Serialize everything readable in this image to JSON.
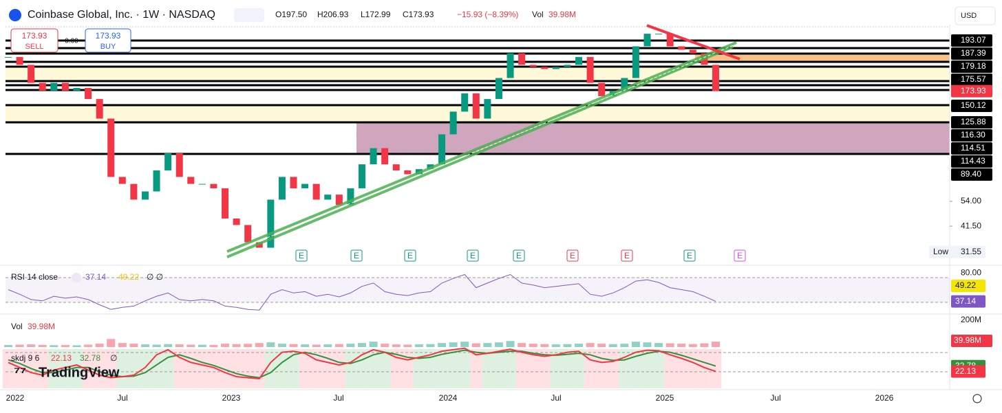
{
  "header": {
    "symbol": "Coinbase Global, Inc. · 1W · NASDAQ",
    "ohlc": [
      "O197.50",
      "H206.93",
      "L172.99",
      "C173.93"
    ],
    "change": "−15.93 (−8.39%)",
    "vol_label": "Vol",
    "vol_value": "39.98M",
    "currency": "USD"
  },
  "trade": {
    "sell_price": "173.93",
    "sell": "SELL",
    "buy_price": "173.93",
    "buy": "BUY",
    "spread": "0.00"
  },
  "chart_data": {
    "type": "candlestick",
    "up_color": "#089981",
    "down_color": "#f23645",
    "log": true,
    "ylim": [
      27.6,
      347
    ],
    "yticks": [
      {
        "value": 54,
        "label": "54.00"
      },
      {
        "value": 41.5,
        "label": "41.50"
      }
    ],
    "closes": [
      250,
      230,
      190,
      175,
      190,
      175,
      180,
      160,
      130,
      70,
      65,
      55,
      60,
      75,
      90,
      70,
      65,
      65,
      62,
      45,
      42,
      35,
      33,
      55,
      70,
      62,
      65,
      55,
      58,
      52,
      62,
      80,
      95,
      80,
      75,
      72,
      76,
      80,
      110,
      140,
      170,
      130,
      160,
      200,
      260,
      230,
      225,
      220,
      225,
      230,
      250,
      190,
      165,
      175,
      200,
      280,
      320,
      320,
      280,
      270,
      260,
      230,
      173.93
    ],
    "last_label": "173.93",
    "low_label": "Low",
    "low": 31.55,
    "levels": [
      "193.07",
      "187.39",
      "179.18",
      "175.57",
      "150.12",
      "125.88",
      "116.30",
      "114.51",
      "114.43",
      "89.40"
    ],
    "earnings": [
      "E",
      "E",
      "E",
      "E",
      "E",
      "E",
      "E",
      "E",
      "E"
    ],
    "x_labels": [
      "2022",
      "Jul",
      "2023",
      "Jul",
      "2024",
      "Jul",
      "2025",
      "Jul",
      "2026"
    ]
  },
  "rsi": {
    "title": "RSI 14 close",
    "value_label": "37.14",
    "ma_label": "49.22",
    "flags": "∅ ∅",
    "color": "#7e57c2",
    "ylim": [
      20,
      90
    ],
    "yticks": [
      {
        "value": 80,
        "label": "80.00"
      }
    ],
    "values": [
      55,
      48,
      40,
      38,
      45,
      42,
      44,
      40,
      32,
      25,
      28,
      30,
      38,
      45,
      50,
      40,
      38,
      40,
      38,
      30,
      28,
      25,
      24,
      48,
      55,
      50,
      52,
      45,
      48,
      44,
      50,
      60,
      65,
      52,
      48,
      46,
      50,
      52,
      65,
      72,
      78,
      58,
      65,
      72,
      78,
      65,
      62,
      58,
      60,
      62,
      64,
      48,
      45,
      50,
      58,
      68,
      70,
      66,
      58,
      55,
      52,
      45,
      37.14
    ]
  },
  "volume": {
    "title": "Vol",
    "value_label": "39.98M",
    "ylim": [
      0,
      200
    ],
    "top_label": "200M",
    "values": [
      15,
      18,
      20,
      16,
      14,
      15,
      13,
      18,
      25,
      60,
      30,
      25,
      20,
      18,
      22,
      20,
      18,
      17,
      16,
      25,
      22,
      24,
      30,
      35,
      25,
      22,
      20,
      18,
      20,
      22,
      25,
      30,
      40,
      25,
      20,
      18,
      20,
      22,
      30,
      35,
      40,
      28,
      30,
      35,
      45,
      30,
      25,
      22,
      20,
      22,
      25,
      30,
      25,
      22,
      25,
      40,
      35,
      30,
      28,
      25,
      22,
      28,
      39.98
    ]
  },
  "skdj": {
    "title": "skdj 9 6",
    "k_label": "22.13",
    "d_label": "32.78",
    "flag": "∅",
    "ylim": [
      0,
      100
    ],
    "k_color": "#f23645",
    "d_color": "#388e3c",
    "k": [
      40,
      30,
      20,
      15,
      25,
      30,
      35,
      25,
      15,
      10,
      12,
      15,
      30,
      55,
      65,
      50,
      40,
      35,
      30,
      20,
      12,
      10,
      8,
      40,
      60,
      62,
      58,
      45,
      40,
      35,
      40,
      55,
      65,
      60,
      50,
      45,
      50,
      55,
      62,
      65,
      68,
      55,
      58,
      62,
      66,
      60,
      55,
      52,
      55,
      60,
      62,
      45,
      40,
      42,
      50,
      60,
      64,
      63,
      55,
      48,
      40,
      30,
      22.13
    ],
    "d": [
      45,
      38,
      28,
      20,
      20,
      25,
      30,
      30,
      22,
      15,
      12,
      13,
      20,
      35,
      50,
      55,
      48,
      40,
      34,
      26,
      18,
      13,
      10,
      20,
      40,
      55,
      60,
      55,
      48,
      40,
      38,
      45,
      55,
      60,
      56,
      50,
      48,
      50,
      56,
      60,
      64,
      60,
      58,
      60,
      62,
      62,
      58,
      55,
      54,
      56,
      58,
      55,
      48,
      44,
      45,
      52,
      58,
      62,
      60,
      54,
      47,
      40,
      32.78
    ]
  },
  "logo": "TradingView"
}
